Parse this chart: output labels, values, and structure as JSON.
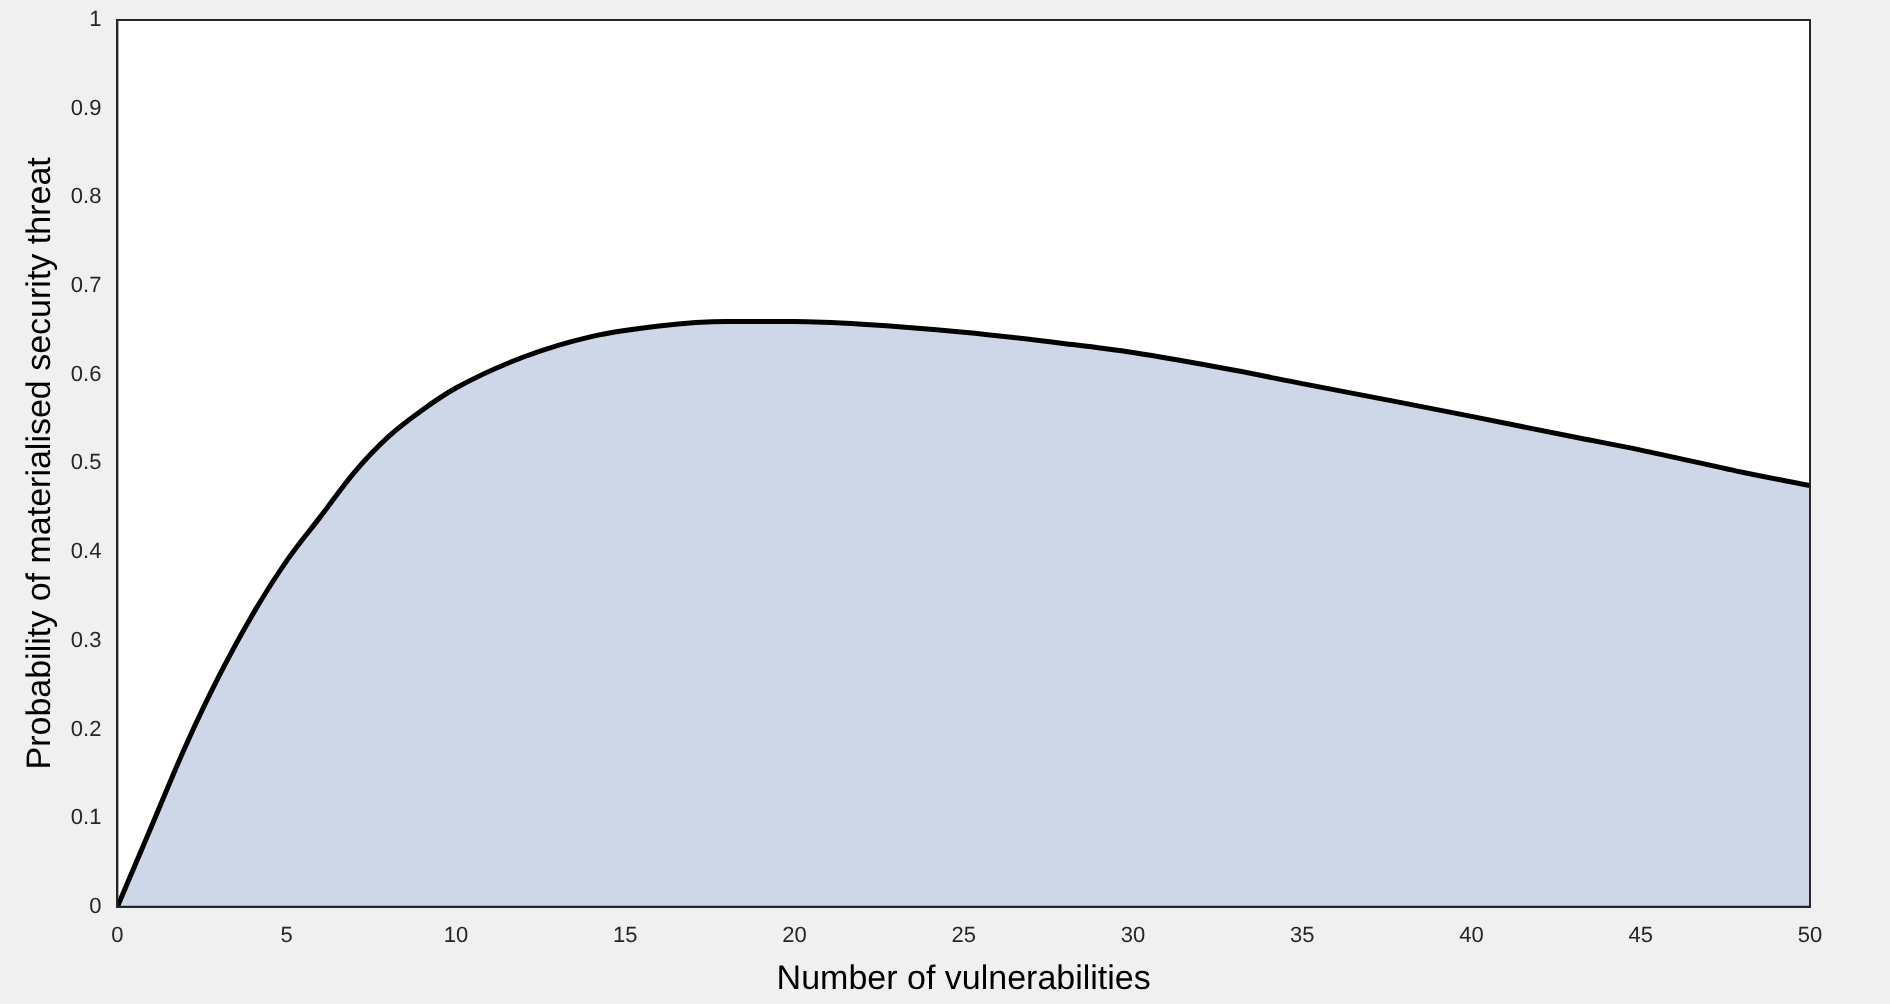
{
  "chart_data": {
    "type": "area",
    "xlabel": "Number of vulnerabilities",
    "ylabel": "Probability of materialised security threat",
    "x": [
      0,
      1,
      2,
      3,
      4,
      5,
      6,
      7,
      8,
      9,
      10,
      12,
      14,
      16,
      18,
      20,
      22,
      25,
      28,
      30,
      33,
      35,
      38,
      40,
      43,
      45,
      48,
      50
    ],
    "series": [
      {
        "color": "#000000",
        "values": [
          0,
          0.09,
          0.18,
          0.26,
          0.33,
          0.39,
          0.44,
          0.49,
          0.53,
          0.56,
          0.585,
          0.62,
          0.643,
          0.655,
          0.66,
          0.66,
          0.657,
          0.648,
          0.635,
          0.625,
          0.605,
          0.59,
          0.568,
          0.553,
          0.53,
          0.515,
          0.49,
          0.475
        ]
      }
    ],
    "xlim": [
      0,
      50
    ],
    "xticks": [
      0,
      5,
      10,
      15,
      20,
      25,
      30,
      35,
      40,
      45,
      50
    ],
    "ylim": [
      0,
      1
    ],
    "yticks": [
      0,
      0.1,
      0.2,
      0.3,
      0.4,
      0.5,
      0.6,
      0.7,
      0.8,
      0.9,
      1
    ],
    "grid": false,
    "legend": false,
    "marker": "none",
    "line_style": "solid"
  }
}
